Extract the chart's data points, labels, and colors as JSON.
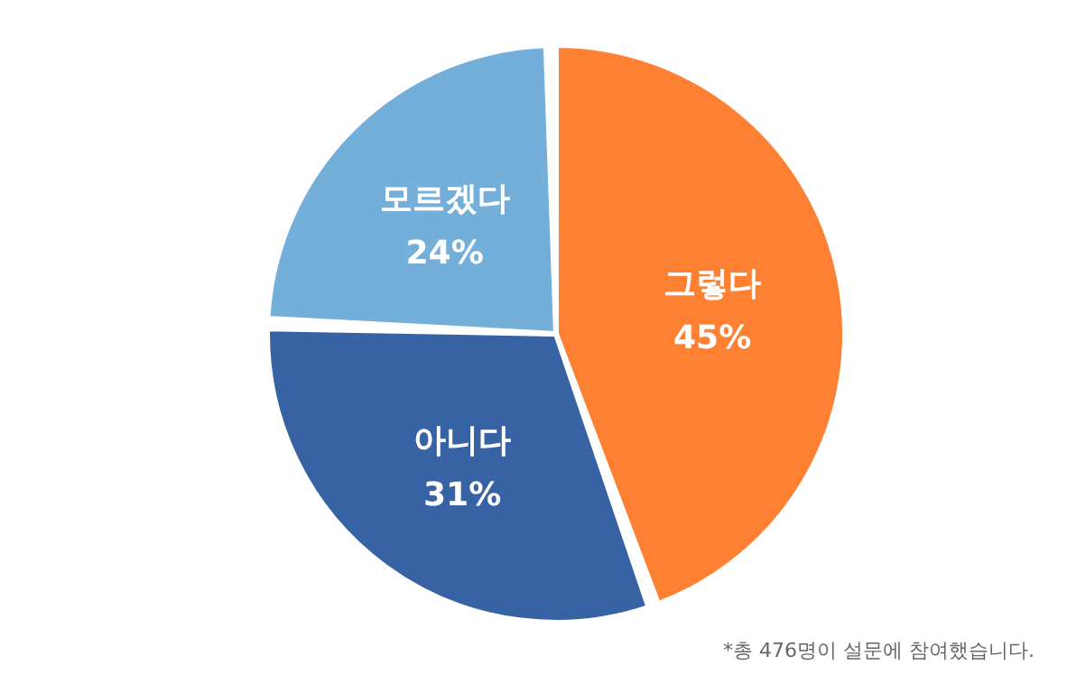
{
  "chart_data": {
    "type": "pie",
    "categories": [
      "그렇다",
      "아니다",
      "모르겠다"
    ],
    "values": [
      45,
      31,
      24
    ],
    "colors": [
      "#fe8033",
      "#3762a4",
      "#74afd9"
    ],
    "value_labels": [
      "45%",
      "31%",
      "24%"
    ],
    "annotations": [
      "*총 476명이 설문에 참여했습니다."
    ]
  }
}
